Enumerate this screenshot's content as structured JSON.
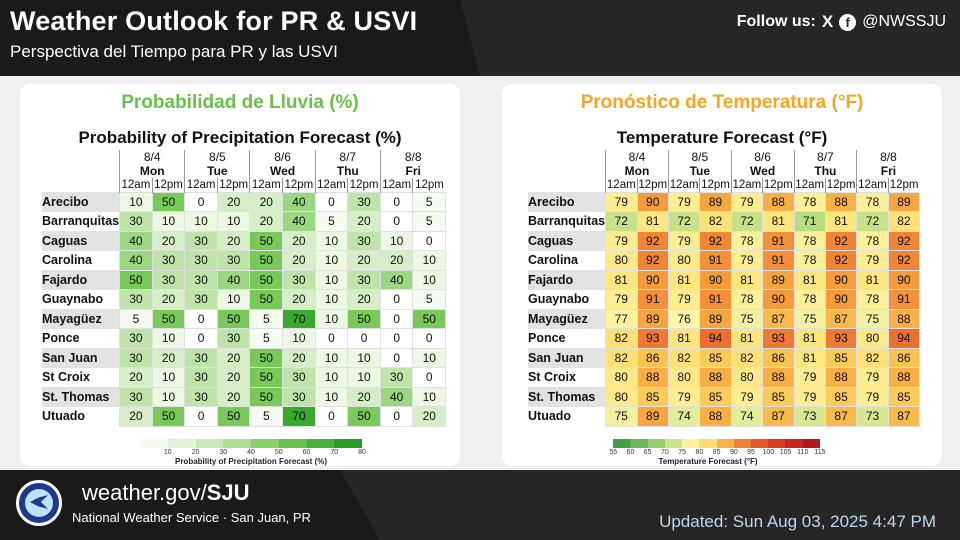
{
  "header": {
    "title_en": "Weather Outlook for PR & USVI",
    "title_es": "Perspectiva del Tiempo para PR y las USVI",
    "follow_label": "Follow us:",
    "x_icon": "X",
    "fb_icon": "f",
    "handle": "@NWSSJU"
  },
  "colors": {
    "green_heading": "#6cc04a",
    "orange_heading": "#f6a623",
    "header_bg": "#262626",
    "updated_text": "#bdd7f0"
  },
  "pop": {
    "heading": "Probabilidad de Lluvia (%)",
    "subtitle": "Probability of Precipitation Forecast (%)",
    "colorbar_label": "Probability of Precipitation Forecast (%)",
    "colorbar_ticks": [
      "10",
      "20",
      "30",
      "40",
      "50",
      "60",
      "70",
      "80"
    ]
  },
  "temp": {
    "heading": "Pronóstico de Temperatura (°F)",
    "subtitle": "Temperature Forecast (°F)",
    "colorbar_label": "Temperature Forecast (°F)",
    "colorbar_ticks": [
      "55",
      "60",
      "65",
      "70",
      "75",
      "80",
      "85",
      "90",
      "95",
      "100",
      "105",
      "110",
      "115"
    ]
  },
  "days": [
    {
      "date": "8/4",
      "dow": "Mon"
    },
    {
      "date": "8/5",
      "dow": "Tue"
    },
    {
      "date": "8/6",
      "dow": "Wed"
    },
    {
      "date": "8/7",
      "dow": "Thu"
    },
    {
      "date": "8/8",
      "dow": "Fri"
    }
  ],
  "periods": [
    "12am",
    "12pm"
  ],
  "chart_data": [
    {
      "type": "table",
      "title": "Probability of Precipitation Forecast (%)",
      "rows": [
        "Arecibo",
        "Barranquitas",
        "Caguas",
        "Carolina",
        "Fajardo",
        "Guaynabo",
        "Mayagüez",
        "Ponce",
        "San Juan",
        "St Croix",
        "St. Thomas",
        "Utuado"
      ],
      "values": [
        [
          10,
          50,
          0,
          20,
          20,
          40,
          0,
          30,
          0,
          5
        ],
        [
          30,
          10,
          10,
          10,
          20,
          40,
          5,
          20,
          0,
          5
        ],
        [
          40,
          20,
          30,
          20,
          50,
          20,
          10,
          30,
          10,
          0
        ],
        [
          40,
          30,
          30,
          30,
          50,
          20,
          10,
          20,
          20,
          10
        ],
        [
          50,
          30,
          30,
          40,
          50,
          30,
          10,
          30,
          40,
          10
        ],
        [
          30,
          20,
          30,
          10,
          50,
          20,
          10,
          20,
          0,
          5
        ],
        [
          5,
          50,
          0,
          50,
          5,
          70,
          10,
          50,
          0,
          50
        ],
        [
          30,
          10,
          0,
          30,
          5,
          10,
          0,
          0,
          0,
          0
        ],
        [
          30,
          20,
          30,
          20,
          50,
          20,
          10,
          10,
          0,
          10
        ],
        [
          20,
          10,
          30,
          20,
          50,
          30,
          10,
          10,
          30,
          0
        ],
        [
          30,
          10,
          30,
          20,
          50,
          30,
          10,
          20,
          40,
          10
        ],
        [
          20,
          50,
          0,
          50,
          5,
          70,
          0,
          50,
          0,
          20
        ]
      ]
    },
    {
      "type": "table",
      "title": "Temperature Forecast (°F)",
      "rows": [
        "Arecibo",
        "Barranquitas",
        "Caguas",
        "Carolina",
        "Fajardo",
        "Guaynabo",
        "Mayagüez",
        "Ponce",
        "San Juan",
        "St Croix",
        "St. Thomas",
        "Utuado"
      ],
      "values": [
        [
          79,
          90,
          79,
          89,
          79,
          88,
          78,
          88,
          78,
          89
        ],
        [
          72,
          81,
          72,
          82,
          72,
          81,
          71,
          81,
          72,
          82
        ],
        [
          79,
          92,
          79,
          92,
          78,
          91,
          78,
          92,
          78,
          92
        ],
        [
          80,
          92,
          80,
          91,
          79,
          91,
          78,
          92,
          79,
          92
        ],
        [
          81,
          90,
          81,
          90,
          81,
          89,
          81,
          90,
          81,
          90
        ],
        [
          79,
          91,
          79,
          91,
          78,
          90,
          78,
          90,
          78,
          91
        ],
        [
          77,
          89,
          76,
          89,
          75,
          87,
          75,
          87,
          75,
          88
        ],
        [
          82,
          93,
          81,
          94,
          81,
          93,
          81,
          93,
          80,
          94
        ],
        [
          82,
          86,
          82,
          85,
          82,
          86,
          81,
          85,
          82,
          86
        ],
        [
          80,
          88,
          80,
          88,
          80,
          88,
          79,
          88,
          79,
          88
        ],
        [
          80,
          85,
          79,
          85,
          79,
          85,
          79,
          85,
          79,
          85
        ],
        [
          75,
          89,
          74,
          88,
          74,
          87,
          73,
          87,
          73,
          87
        ]
      ]
    }
  ],
  "footer": {
    "site_prefix": "weather.gov/",
    "site_suffix": "SJU",
    "office": "National Weather Service · San Juan, PR",
    "updated": "Updated: Sun Aug 03, 2025 4:47 PM"
  }
}
